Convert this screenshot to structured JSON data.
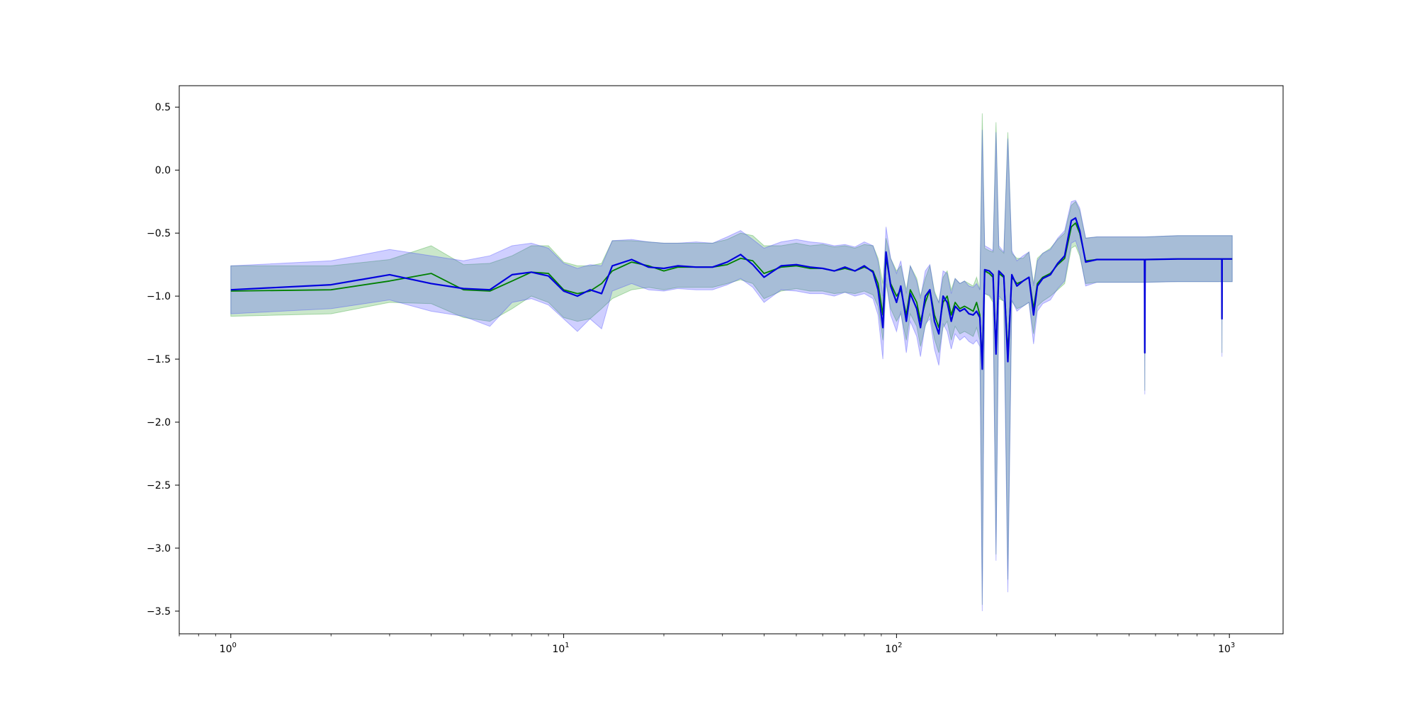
{
  "chart_data": {
    "type": "line",
    "title": "",
    "xlabel": "",
    "ylabel": "",
    "xscale": "log",
    "xlim": [
      0.7,
      1450
    ],
    "ylim": [
      -3.68,
      0.67
    ],
    "grid": false,
    "legend": "none",
    "x_ticks": [
      {
        "label": "10",
        "exp": "0",
        "value": 1
      },
      {
        "label": "10",
        "exp": "1",
        "value": 10
      },
      {
        "label": "10",
        "exp": "2",
        "value": 100
      },
      {
        "label": "10",
        "exp": "3",
        "value": 1000
      }
    ],
    "y_ticks": [
      {
        "label": "0.5",
        "value": 0.5
      },
      {
        "label": "0.0",
        "value": 0.0
      },
      {
        "label": "−0.5",
        "value": -0.5
      },
      {
        "label": "−1.0",
        "value": -1.0
      },
      {
        "label": "−1.5",
        "value": -1.5
      },
      {
        "label": "−2.0",
        "value": -2.0
      },
      {
        "label": "−2.5",
        "value": -2.5
      },
      {
        "label": "−3.0",
        "value": -3.0
      },
      {
        "label": "−3.5",
        "value": -3.5
      }
    ],
    "series": [
      {
        "color": "#008000",
        "band_color": "#2ca02c",
        "points": [
          [
            1,
            -0.96,
            -0.76,
            -1.16
          ],
          [
            2,
            -0.95,
            -0.76,
            -1.14
          ],
          [
            3,
            -0.88,
            -0.71,
            -1.05
          ],
          [
            4,
            -0.82,
            -0.6,
            -1.06
          ],
          [
            5,
            -0.95,
            -0.75,
            -1.17
          ],
          [
            6,
            -0.96,
            -0.74,
            -1.2
          ],
          [
            7,
            -0.88,
            -0.68,
            -1.1
          ],
          [
            8,
            -0.81,
            -0.6,
            -1.0
          ],
          [
            9,
            -0.82,
            -0.6,
            -1.05
          ],
          [
            10,
            -0.95,
            -0.73,
            -1.17
          ],
          [
            11,
            -0.98,
            -0.76,
            -1.2
          ],
          [
            12,
            -0.96,
            -0.76,
            -1.18
          ],
          [
            13,
            -0.9,
            -0.74,
            -1.1
          ],
          [
            14,
            -0.8,
            -0.56,
            -1.02
          ],
          [
            16,
            -0.73,
            -0.56,
            -0.95
          ],
          [
            18,
            -0.76,
            -0.57,
            -0.93
          ],
          [
            20,
            -0.8,
            -0.58,
            -0.95
          ],
          [
            22,
            -0.77,
            -0.58,
            -0.93
          ],
          [
            25,
            -0.77,
            -0.58,
            -0.93
          ],
          [
            28,
            -0.77,
            -0.58,
            -0.93
          ],
          [
            31,
            -0.75,
            -0.55,
            -0.9
          ],
          [
            34,
            -0.7,
            -0.5,
            -0.87
          ],
          [
            37,
            -0.72,
            -0.52,
            -0.9
          ],
          [
            40,
            -0.82,
            -0.6,
            -1.02
          ],
          [
            45,
            -0.77,
            -0.6,
            -0.96
          ],
          [
            50,
            -0.76,
            -0.58,
            -0.94
          ],
          [
            55,
            -0.78,
            -0.6,
            -0.96
          ],
          [
            60,
            -0.78,
            -0.59,
            -0.96
          ],
          [
            65,
            -0.8,
            -0.61,
            -0.98
          ],
          [
            70,
            -0.78,
            -0.6,
            -0.97
          ],
          [
            75,
            -0.8,
            -0.62,
            -0.98
          ],
          [
            80,
            -0.77,
            -0.59,
            -0.96
          ],
          [
            85,
            -0.8,
            -0.6,
            -0.99
          ],
          [
            88,
            -0.9,
            -0.7,
            -1.08
          ],
          [
            91,
            -1.15,
            -0.9,
            -1.35
          ],
          [
            93,
            -0.7,
            -0.54,
            -0.9
          ],
          [
            96,
            -0.9,
            -0.7,
            -1.1
          ],
          [
            100,
            -1.0,
            -0.8,
            -1.2
          ],
          [
            103,
            -0.95,
            -0.76,
            -1.14
          ],
          [
            107,
            -1.15,
            -0.95,
            -1.35
          ],
          [
            110,
            -0.95,
            -0.76,
            -1.14
          ],
          [
            115,
            -1.05,
            -0.86,
            -1.24
          ],
          [
            118,
            -1.2,
            -1.0,
            -1.4
          ],
          [
            122,
            -1.05,
            -0.86,
            -1.24
          ],
          [
            126,
            -0.95,
            -0.76,
            -1.14
          ],
          [
            130,
            -1.15,
            -0.96,
            -1.34
          ],
          [
            134,
            -1.25,
            -1.05,
            -1.45
          ],
          [
            138,
            -1.05,
            -0.85,
            -1.25
          ],
          [
            142,
            -1.0,
            -0.8,
            -1.2
          ],
          [
            146,
            -1.15,
            -0.95,
            -1.35
          ],
          [
            150,
            -1.05,
            -0.86,
            -1.24
          ],
          [
            155,
            -1.1,
            -0.9,
            -1.3
          ],
          [
            160,
            -1.08,
            -0.88,
            -1.28
          ],
          [
            165,
            -1.1,
            -0.9,
            -1.3
          ],
          [
            170,
            -1.12,
            -0.92,
            -1.32
          ],
          [
            174,
            -1.05,
            -0.85,
            -1.25
          ],
          [
            178,
            -1.15,
            -0.95,
            -1.35
          ],
          [
            181,
            -1.55,
            0.45,
            -3.45
          ],
          [
            184,
            -0.8,
            -0.62,
            -0.98
          ],
          [
            190,
            -0.82,
            -0.64,
            -1.0
          ],
          [
            195,
            -0.85,
            -0.65,
            -1.05
          ],
          [
            199,
            -1.42,
            0.38,
            -3.05
          ],
          [
            203,
            -0.82,
            -0.62,
            -1.02
          ],
          [
            210,
            -0.85,
            -0.66,
            -1.04
          ],
          [
            216,
            -1.45,
            0.3,
            -3.25
          ],
          [
            222,
            -0.85,
            -0.66,
            -1.04
          ],
          [
            230,
            -0.9,
            -0.7,
            -1.1
          ],
          [
            240,
            -0.88,
            -0.7,
            -1.08
          ],
          [
            250,
            -0.85,
            -0.65,
            -1.05
          ],
          [
            258,
            -1.1,
            -0.9,
            -1.3
          ],
          [
            265,
            -0.9,
            -0.7,
            -1.08
          ],
          [
            275,
            -0.85,
            -0.66,
            -1.04
          ],
          [
            290,
            -0.82,
            -0.62,
            -1.0
          ],
          [
            305,
            -0.75,
            -0.55,
            -0.95
          ],
          [
            320,
            -0.7,
            -0.5,
            -0.9
          ],
          [
            335,
            -0.45,
            -0.28,
            -0.62
          ],
          [
            345,
            -0.42,
            -0.25,
            -0.6
          ],
          [
            355,
            -0.5,
            -0.32,
            -0.68
          ],
          [
            370,
            -0.72,
            -0.54,
            -0.9
          ],
          [
            400,
            -0.71,
            -0.53,
            -0.89
          ],
          [
            450,
            -0.71,
            -0.53,
            -0.89
          ],
          [
            500,
            -0.71,
            -0.53,
            -0.89
          ],
          [
            556,
            -0.71,
            -0.53,
            -0.89
          ],
          [
            557,
            -1.45,
            -0.53,
            -1.75
          ],
          [
            558,
            -0.71,
            -0.53,
            -0.89
          ],
          [
            700,
            -0.705,
            -0.52,
            -0.885
          ],
          [
            949,
            -0.705,
            -0.52,
            -0.885
          ],
          [
            950,
            -1.18,
            -0.52,
            -1.45
          ],
          [
            951,
            -0.705,
            -0.52,
            -0.885
          ],
          [
            1020,
            -0.705,
            -0.52,
            -0.885
          ]
        ]
      },
      {
        "color": "#0000dd",
        "band_color": "#4040ff",
        "points": [
          [
            1,
            -0.95,
            -0.76,
            -1.14
          ],
          [
            2,
            -0.91,
            -0.72,
            -1.1
          ],
          [
            3,
            -0.83,
            -0.63,
            -1.03
          ],
          [
            4,
            -0.9,
            -0.68,
            -1.12
          ],
          [
            5,
            -0.94,
            -0.72,
            -1.16
          ],
          [
            6,
            -0.95,
            -0.68,
            -1.24
          ],
          [
            7,
            -0.83,
            -0.6,
            -1.05
          ],
          [
            8,
            -0.81,
            -0.58,
            -1.02
          ],
          [
            9,
            -0.84,
            -0.62,
            -1.07
          ],
          [
            10,
            -0.96,
            -0.74,
            -1.18
          ],
          [
            11,
            -1.0,
            -0.78,
            -1.28
          ],
          [
            12,
            -0.95,
            -0.75,
            -1.18
          ],
          [
            13,
            -0.98,
            -0.76,
            -1.26
          ],
          [
            14,
            -0.76,
            -0.56,
            -0.96
          ],
          [
            16,
            -0.71,
            -0.55,
            -0.9
          ],
          [
            18,
            -0.77,
            -0.57,
            -0.95
          ],
          [
            20,
            -0.78,
            -0.58,
            -0.96
          ],
          [
            22,
            -0.76,
            -0.58,
            -0.94
          ],
          [
            25,
            -0.77,
            -0.57,
            -0.95
          ],
          [
            28,
            -0.77,
            -0.58,
            -0.95
          ],
          [
            31,
            -0.73,
            -0.53,
            -0.91
          ],
          [
            34,
            -0.67,
            -0.48,
            -0.86
          ],
          [
            37,
            -0.75,
            -0.55,
            -0.93
          ],
          [
            40,
            -0.85,
            -0.62,
            -1.05
          ],
          [
            45,
            -0.76,
            -0.57,
            -0.95
          ],
          [
            50,
            -0.75,
            -0.55,
            -0.96
          ],
          [
            55,
            -0.77,
            -0.57,
            -0.98
          ],
          [
            60,
            -0.78,
            -0.58,
            -0.98
          ],
          [
            65,
            -0.8,
            -0.6,
            -1.0
          ],
          [
            70,
            -0.77,
            -0.59,
            -0.97
          ],
          [
            75,
            -0.8,
            -0.61,
            -1.0
          ],
          [
            80,
            -0.76,
            -0.57,
            -0.98
          ],
          [
            85,
            -0.81,
            -0.6,
            -1.02
          ],
          [
            88,
            -0.95,
            -0.72,
            -1.15
          ],
          [
            91,
            -1.25,
            -1.0,
            -1.5
          ],
          [
            93,
            -0.65,
            -0.45,
            -0.85
          ],
          [
            96,
            -0.92,
            -0.7,
            -1.15
          ],
          [
            100,
            -1.05,
            -0.82,
            -1.28
          ],
          [
            103,
            -0.92,
            -0.72,
            -1.12
          ],
          [
            107,
            -1.2,
            -0.98,
            -1.45
          ],
          [
            110,
            -0.98,
            -0.76,
            -1.2
          ],
          [
            115,
            -1.1,
            -0.88,
            -1.32
          ],
          [
            118,
            -1.25,
            -1.02,
            -1.48
          ],
          [
            122,
            -1.0,
            -0.8,
            -1.22
          ],
          [
            126,
            -0.95,
            -0.75,
            -1.18
          ],
          [
            130,
            -1.2,
            -0.98,
            -1.42
          ],
          [
            134,
            -1.3,
            -1.05,
            -1.55
          ],
          [
            138,
            -1.0,
            -0.8,
            -1.22
          ],
          [
            142,
            -1.05,
            -0.82,
            -1.28
          ],
          [
            146,
            -1.2,
            -0.98,
            -1.42
          ],
          [
            150,
            -1.08,
            -0.86,
            -1.3
          ],
          [
            155,
            -1.12,
            -0.9,
            -1.35
          ],
          [
            160,
            -1.1,
            -0.88,
            -1.32
          ],
          [
            165,
            -1.14,
            -0.92,
            -1.36
          ],
          [
            170,
            -1.15,
            -0.93,
            -1.38
          ],
          [
            174,
            -1.12,
            -0.9,
            -1.35
          ],
          [
            178,
            -1.17,
            -0.95,
            -1.4
          ],
          [
            181,
            -1.58,
            0.32,
            -3.5
          ],
          [
            184,
            -0.79,
            -0.6,
            -0.98
          ],
          [
            190,
            -0.8,
            -0.62,
            -0.99
          ],
          [
            195,
            -0.83,
            -0.64,
            -1.03
          ],
          [
            199,
            -1.46,
            0.3,
            -3.1
          ],
          [
            203,
            -0.8,
            -0.6,
            -1.0
          ],
          [
            210,
            -0.84,
            -0.65,
            -1.04
          ],
          [
            216,
            -1.52,
            0.25,
            -3.35
          ],
          [
            222,
            -0.83,
            -0.64,
            -1.03
          ],
          [
            230,
            -0.92,
            -0.72,
            -1.12
          ],
          [
            240,
            -0.88,
            -0.68,
            -1.08
          ],
          [
            250,
            -0.85,
            -0.65,
            -1.05
          ],
          [
            258,
            -1.15,
            -0.92,
            -1.38
          ],
          [
            265,
            -0.92,
            -0.72,
            -1.12
          ],
          [
            275,
            -0.86,
            -0.66,
            -1.06
          ],
          [
            290,
            -0.83,
            -0.63,
            -1.03
          ],
          [
            305,
            -0.74,
            -0.54,
            -0.94
          ],
          [
            320,
            -0.68,
            -0.48,
            -0.88
          ],
          [
            335,
            -0.4,
            -0.25,
            -0.58
          ],
          [
            345,
            -0.38,
            -0.24,
            -0.56
          ],
          [
            355,
            -0.48,
            -0.3,
            -0.66
          ],
          [
            370,
            -0.73,
            -0.54,
            -0.92
          ],
          [
            400,
            -0.71,
            -0.53,
            -0.89
          ],
          [
            450,
            -0.71,
            -0.53,
            -0.89
          ],
          [
            500,
            -0.71,
            -0.53,
            -0.89
          ],
          [
            556,
            -0.71,
            -0.53,
            -0.89
          ],
          [
            557,
            -1.45,
            -0.53,
            -1.78
          ],
          [
            558,
            -0.71,
            -0.53,
            -0.89
          ],
          [
            700,
            -0.705,
            -0.52,
            -0.885
          ],
          [
            949,
            -0.705,
            -0.52,
            -0.885
          ],
          [
            950,
            -1.18,
            -0.52,
            -1.48
          ],
          [
            951,
            -0.705,
            -0.52,
            -0.885
          ],
          [
            1020,
            -0.705,
            -0.52,
            -0.885
          ]
        ]
      }
    ]
  }
}
